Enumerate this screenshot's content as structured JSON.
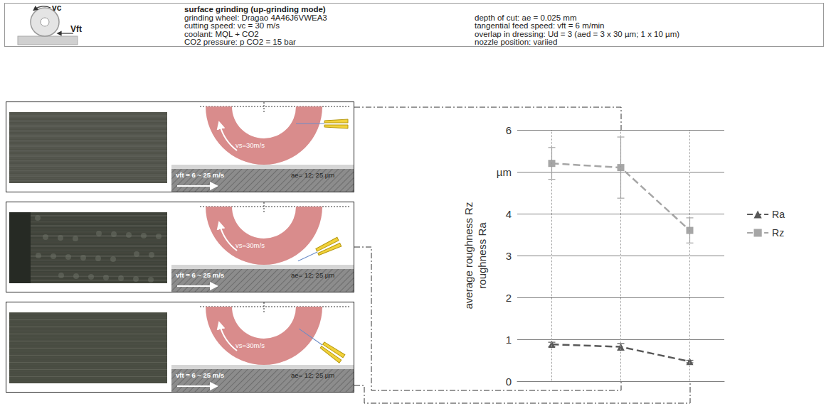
{
  "header": {
    "title": "surface grinding (up-grinding mode)",
    "icon_labels": [
      "vc",
      "Vft"
    ],
    "left": [
      "grinding wheel: Dragao 4A46J6VWEA3",
      "cutting speed: vc = 30 m/s",
      "coolant: MQL + CO2",
      "CO2 pressure: p CO2 = 15 bar"
    ],
    "right": [
      "depth of cut: ae = 0.025 mm",
      "tangential feed speed: vft = 6 m/min",
      "overlap in dressing: Ud = 3 (aed = 3 x 30 µm; 1 x 10 µm)",
      "nozzle position: variied"
    ]
  },
  "panels": [
    {
      "wheel": "vs=30m/s",
      "feed": "vft = 6 ~ 25 m/s",
      "depth": "ae= 12; 25 µm"
    },
    {
      "wheel": "vs=30m/s",
      "feed": "vft = 6 ~ 25 m/s",
      "depth": "ae= 12; 25 µm"
    },
    {
      "wheel": "vs=30m/s",
      "feed": "vft = 6 ~ 25 m/s",
      "depth": "ae= 12; 25 µm"
    }
  ],
  "chart_data": {
    "type": "line",
    "ylabel": [
      "average roughness Rz",
      "roughness Ra"
    ],
    "categories": [
      null,
      null,
      null
    ],
    "series": [
      {
        "name": "Ra",
        "color": "#595959",
        "marker": "triangle",
        "line_style": "dashed",
        "values": [
          0.88,
          0.82,
          0.47
        ],
        "errors": [
          0.05,
          0.08,
          0.03
        ]
      },
      {
        "name": "Rz",
        "color": "#a6a6a6",
        "marker": "square",
        "line_style": "dashed",
        "values": [
          5.2,
          5.1,
          3.6
        ],
        "errors": [
          0.38,
          0.73,
          0.3
        ]
      }
    ],
    "ylim": [
      0,
      6
    ],
    "yticks": [
      0,
      1,
      2,
      3,
      4,
      {
        "value": 5,
        "label": "µm"
      },
      6
    ],
    "grid": true,
    "legend": "right"
  }
}
